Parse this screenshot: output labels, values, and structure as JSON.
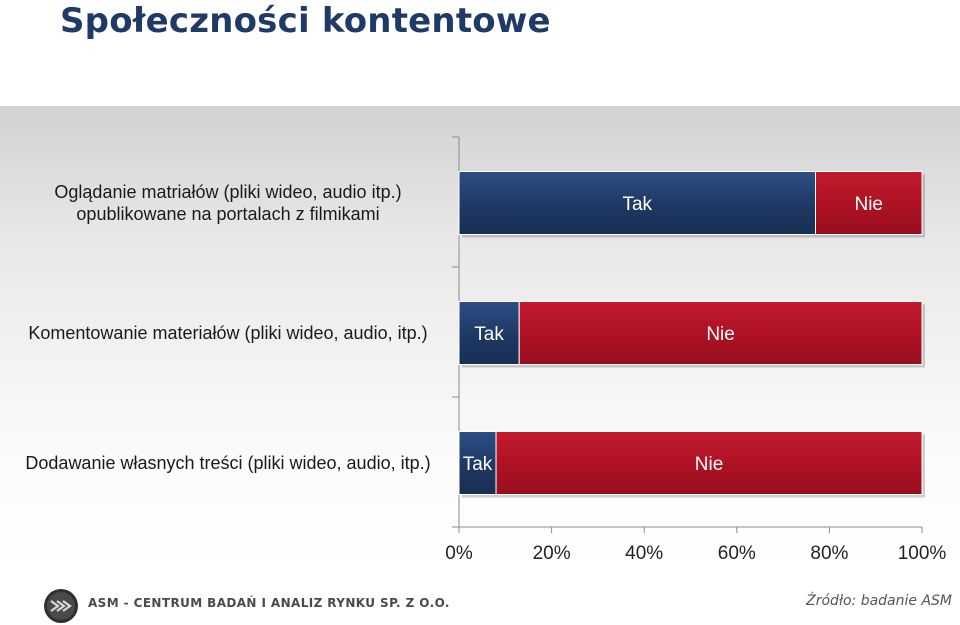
{
  "slide": {
    "title": "Społeczności kontentowe"
  },
  "chart_data": {
    "type": "bar",
    "orientation": "horizontal",
    "stacked": true,
    "percent": true,
    "categories": [
      "Oglądanie matriałów (pliki wideo, audio itp.) opublikowane na portalach z filmikami",
      "Komentowanie materiałów (pliki wideo, audio, itp.)",
      "Dodawanie własnych treści (pliki wideo, audio, itp.)"
    ],
    "series": [
      {
        "name": "Tak",
        "color": "#1f3a66",
        "values": [
          77,
          13,
          8
        ]
      },
      {
        "name": "Nie",
        "color": "#b01225",
        "values": [
          23,
          87,
          92
        ]
      }
    ],
    "xlim": [
      0,
      100
    ],
    "xticks": [
      "0%",
      "20%",
      "40%",
      "60%",
      "80%",
      "100%"
    ],
    "legend": "none"
  },
  "footer": {
    "company": "ASM - CENTRUM BADAŃ I ANALIZ RYNKU SP. Z O.O.",
    "source": "Źródło: badanie ASM"
  }
}
